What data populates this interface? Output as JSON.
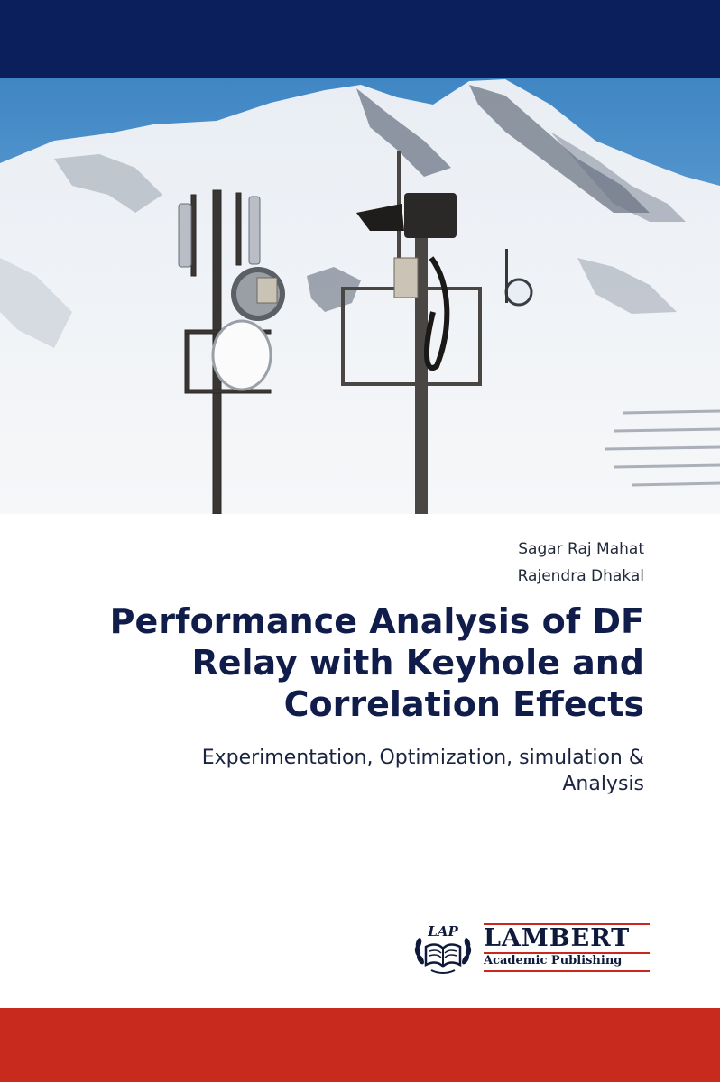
{
  "cover": {
    "authors": [
      "Sagar Raj Mahat",
      "Rajendra Dhakal"
    ],
    "title_lines": [
      "Performance Analysis of DF",
      "Relay with Keyhole and",
      "Correlation Effects"
    ],
    "subtitle_lines": [
      "Experimentation, Optimization, simulation &",
      "Analysis"
    ],
    "photo_subject": "antenna-masts-on-snowy-mountain",
    "colors": {
      "top_band": "#0a1f5c",
      "bottom_band": "#c82a1e",
      "title_text": "#101c4a"
    }
  },
  "publisher": {
    "emblem_text": "LAP",
    "name": "LAMBERT",
    "subtitle": "Academic Publishing",
    "emblem_icon": "open-book-laurel-icon"
  }
}
